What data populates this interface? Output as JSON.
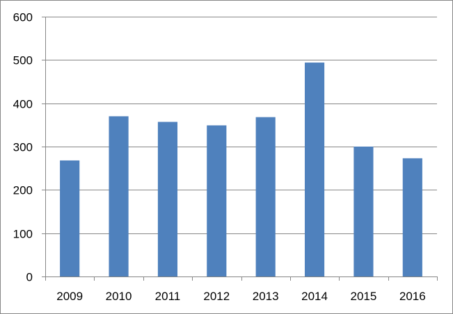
{
  "chart_data": {
    "type": "bar",
    "categories": [
      "2009",
      "2010",
      "2011",
      "2012",
      "2013",
      "2014",
      "2015",
      "2016"
    ],
    "values": [
      268,
      370,
      357,
      349,
      368,
      494,
      300,
      273
    ],
    "ylim": [
      0,
      600
    ],
    "yticks": [
      0,
      100,
      200,
      300,
      400,
      500,
      600
    ],
    "ytick_labels": [
      "0",
      "100",
      "200",
      "300",
      "400",
      "500",
      "600"
    ],
    "grid": true,
    "legend": "none",
    "colors": {
      "bar": "#4f81bd",
      "grid": "#868686",
      "axis": "#868686",
      "text": "#000000"
    }
  }
}
